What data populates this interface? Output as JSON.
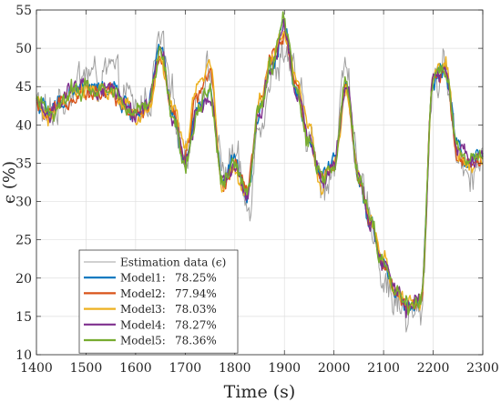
{
  "chart_data": {
    "type": "line",
    "xlabel": "Time (s)",
    "ylabel": "ϵ (%)",
    "xlim": [
      1400,
      2300
    ],
    "ylim": [
      10,
      55
    ],
    "xticks": [
      1400,
      1500,
      1600,
      1700,
      1800,
      1900,
      2000,
      2100,
      2200,
      2300
    ],
    "yticks": [
      10,
      15,
      20,
      25,
      30,
      35,
      40,
      45,
      50,
      55
    ],
    "grid": true,
    "legend_position": "bottom-left",
    "x_step": 25,
    "x": [
      1400,
      1425,
      1450,
      1475,
      1500,
      1525,
      1550,
      1575,
      1600,
      1625,
      1650,
      1675,
      1700,
      1725,
      1750,
      1775,
      1800,
      1825,
      1850,
      1875,
      1900,
      1925,
      1950,
      1975,
      2000,
      2025,
      2050,
      2075,
      2100,
      2125,
      2150,
      2175,
      2200,
      2225,
      2250,
      2275,
      2300
    ],
    "series": [
      {
        "name": "Estimation data (ϵ)",
        "color": "#a0a0a0",
        "values": [
          43,
          41,
          43,
          45,
          47,
          46,
          47,
          44,
          42,
          43,
          51,
          43,
          36,
          44,
          47,
          34,
          36,
          29,
          41,
          46,
          50,
          45,
          38,
          32,
          35,
          49,
          32,
          28,
          20,
          17,
          15,
          15,
          46,
          47,
          36,
          34,
          36
        ]
      },
      {
        "name": "Model1:",
        "percent": "78.25%",
        "color": "#0072bd",
        "values": [
          43,
          41.5,
          43,
          44.5,
          45,
          44.5,
          45,
          43,
          41.5,
          42.5,
          50,
          41,
          35,
          42,
          44,
          33,
          35,
          31,
          42,
          48,
          53,
          44,
          38,
          33,
          35,
          46,
          33,
          27,
          22,
          18,
          16,
          17,
          46,
          47,
          37,
          35,
          36
        ]
      },
      {
        "name": "Model2:",
        "percent": "77.94%",
        "color": "#d95319",
        "values": [
          42.5,
          41,
          42.5,
          44,
          44.5,
          44,
          44.5,
          42.5,
          41,
          42,
          49,
          42,
          36,
          44,
          47,
          32,
          35,
          31,
          43,
          49,
          52,
          45,
          38,
          33,
          35,
          45,
          33,
          27,
          22,
          17.5,
          16,
          16.5,
          46,
          47,
          36,
          35,
          35.5
        ]
      },
      {
        "name": "Model3:",
        "percent": "78.03%",
        "color": "#edb120",
        "values": [
          42.5,
          41,
          42.5,
          44,
          44.5,
          44,
          44.5,
          42.5,
          41,
          42,
          48.5,
          42.5,
          37,
          45,
          48,
          32,
          34,
          31,
          43,
          49,
          52,
          46,
          39,
          32,
          35,
          44,
          33,
          27,
          22.5,
          18,
          16.5,
          17,
          46,
          48,
          36,
          34.5,
          35
        ]
      },
      {
        "name": "Model4:",
        "percent": "78.27%",
        "color": "#7e2f8e",
        "values": [
          43,
          41.5,
          43,
          44.5,
          45,
          44.5,
          45,
          43,
          41.5,
          42.5,
          50,
          41,
          35,
          42,
          44,
          33,
          35,
          31,
          42,
          48,
          53,
          44,
          38,
          33,
          35,
          46,
          33,
          27,
          22,
          18,
          16,
          17,
          46,
          47,
          37,
          35,
          36
        ]
      },
      {
        "name": "Model5:",
        "percent": "78.36%",
        "color": "#77ac30",
        "values": [
          43,
          41.5,
          43,
          44.5,
          45,
          44.5,
          45,
          43,
          41.5,
          42.5,
          50,
          41,
          35,
          42,
          44,
          33,
          35,
          31,
          42,
          48,
          54,
          44,
          38,
          33,
          35,
          46,
          33,
          27,
          22,
          18,
          16,
          17,
          46,
          47,
          37,
          35,
          36
        ]
      }
    ]
  }
}
